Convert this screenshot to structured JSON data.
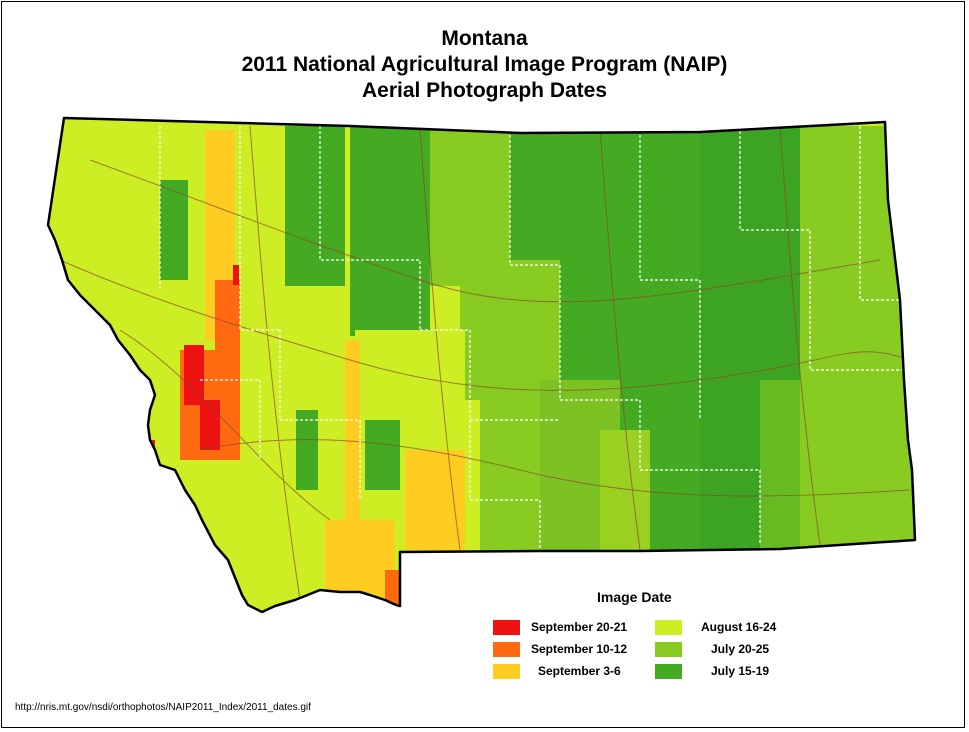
{
  "title": {
    "line1": "Montana",
    "line2": "2011 National Agricultural Image Program (NAIP)",
    "line3": "Aerial Photograph Dates"
  },
  "legend": {
    "title": "Image Date",
    "items": [
      {
        "label": "September 20-21",
        "color": "#ee1111"
      },
      {
        "label": "September 10-12",
        "color": "#ff6a10"
      },
      {
        "label": "September 3-6",
        "color": "#ffcc22"
      },
      {
        "label": "August 16-24",
        "color": "#ccee22"
      },
      {
        "label": "July 20-25",
        "color": "#88cc22"
      },
      {
        "label": "July 15-19",
        "color": "#44aa22"
      }
    ]
  },
  "source": "http://nris.mt.gov/nsdi/orthophotos/NAIP2011_Index/2011_dates.gif",
  "map": {
    "region": "Montana",
    "boundary_color": "#000000",
    "county_line_color": "#ffffff",
    "road_color": "#8b4a2b"
  }
}
